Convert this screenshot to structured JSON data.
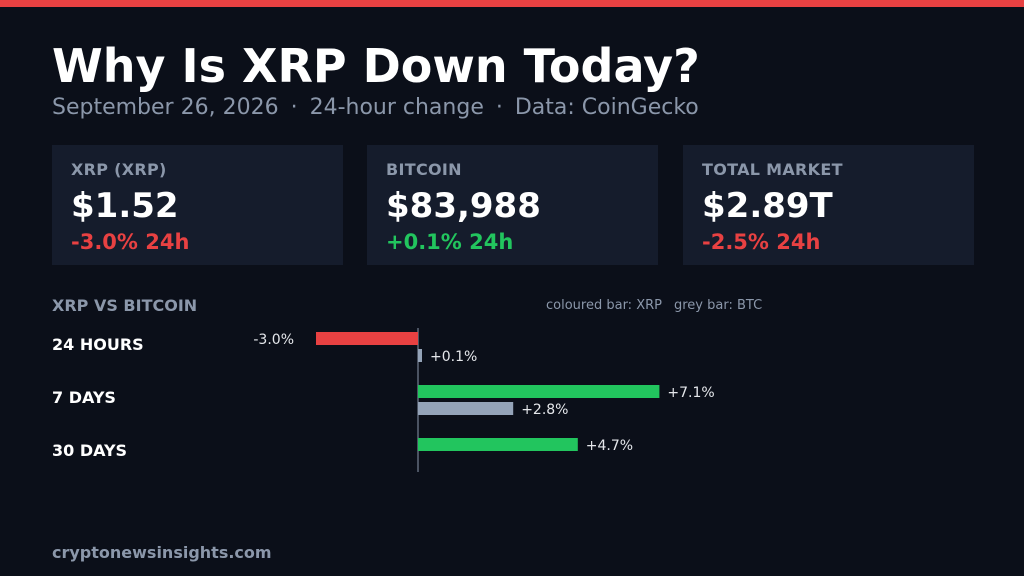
{
  "title": "Why Is XRP Down Today?",
  "subtitle": {
    "date": "September 26, 2026",
    "separator": "·",
    "period": "24-hour change",
    "source": "Data: CoinGecko"
  },
  "colors": {
    "accent": "#e84142",
    "negative": "#e84142",
    "positive": "#22c55e",
    "btc_bar": "#94a3b8",
    "muted": "#8b97aa"
  },
  "cards": [
    {
      "label": "XRP (XRP)",
      "value": "$1.52",
      "change": "-3.0% 24h",
      "direction": "down"
    },
    {
      "label": "BITCOIN",
      "value": "$83,988",
      "change": "+0.1% 24h",
      "direction": "up"
    },
    {
      "label": "TOTAL MARKET",
      "value": "$2.89T",
      "change": "-2.5% 24h",
      "direction": "down"
    }
  ],
  "section_title": "XRP VS BITCOIN",
  "legend": {
    "xrp": "coloured bar: XRP",
    "btc": "grey bar: BTC"
  },
  "chart_data": {
    "type": "bar",
    "orientation": "horizontal",
    "categories": [
      "24 HOURS",
      "7 DAYS",
      "30 DAYS"
    ],
    "series": [
      {
        "values": [
          -3.0,
          7.1,
          4.7
        ],
        "labels": [
          "-3.0%",
          "+7.1%",
          "+4.7%"
        ]
      },
      {
        "values": [
          0.1,
          2.8,
          null
        ],
        "labels": [
          "+0.1%",
          "+2.8%",
          null
        ]
      }
    ],
    "xlim": [
      -3.0,
      7.1
    ]
  },
  "footer": "cryptonewsinsights.com"
}
